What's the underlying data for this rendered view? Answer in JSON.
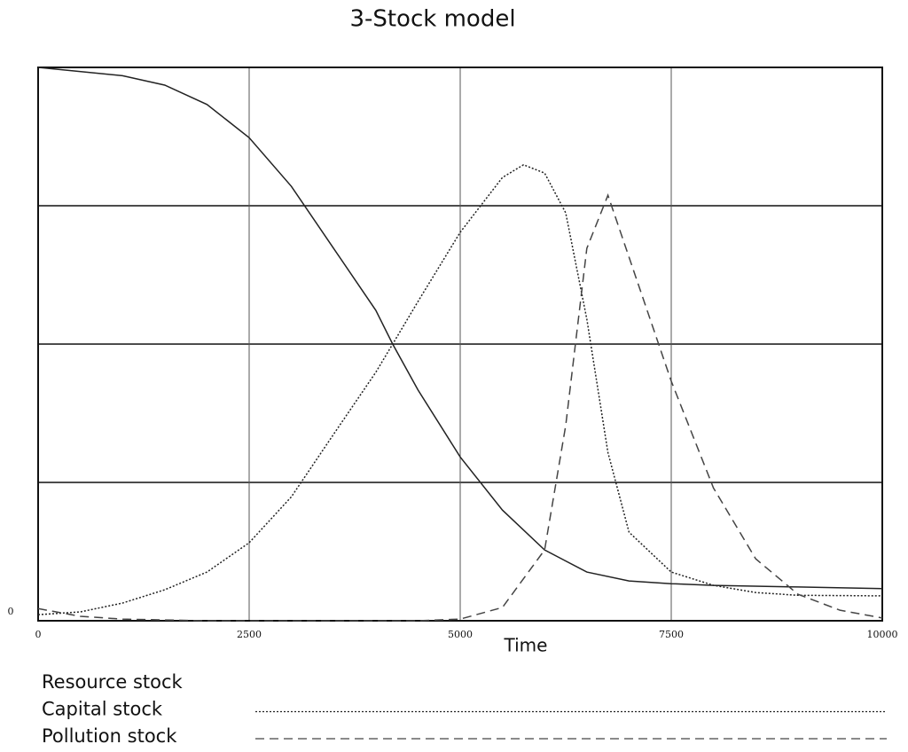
{
  "chart_data": {
    "type": "line",
    "title": "3-Stock model",
    "x_label": "Time",
    "xlim": [
      0,
      10000
    ],
    "xticks": [
      0,
      2500,
      5000,
      7500,
      10000
    ],
    "ylim": [
      0,
      1
    ],
    "yticks": [
      0
    ],
    "ygrid": [
      0.25,
      0.5,
      0.75
    ],
    "grid": true,
    "series": [
      {
        "name": "Resource stock",
        "color": "#222222",
        "dash": "solid",
        "x": [
          0,
          1000,
          1500,
          2000,
          2500,
          3000,
          3500,
          4000,
          4200,
          4500,
          5000,
          5500,
          6000,
          6500,
          7000,
          7500,
          8000,
          9000,
          10000
        ],
        "values": [
          1.0,
          0.985,
          0.968,
          0.933,
          0.873,
          0.785,
          0.673,
          0.561,
          0.5,
          0.417,
          0.296,
          0.2,
          0.128,
          0.088,
          0.072,
          0.067,
          0.064,
          0.061,
          0.058
        ]
      },
      {
        "name": "Capital stock",
        "color": "#222222",
        "dash": "dotted",
        "x": [
          0,
          500,
          1000,
          1500,
          2000,
          2500,
          3000,
          3500,
          4000,
          4200,
          4500,
          5000,
          5500,
          5750,
          6000,
          6250,
          6500,
          6750,
          7000,
          7500,
          8000,
          8500,
          9000,
          10000
        ],
        "values": [
          0.011,
          0.016,
          0.032,
          0.056,
          0.088,
          0.141,
          0.224,
          0.337,
          0.449,
          0.5,
          0.577,
          0.702,
          0.801,
          0.824,
          0.809,
          0.737,
          0.545,
          0.304,
          0.16,
          0.088,
          0.064,
          0.051,
          0.046,
          0.045
        ]
      },
      {
        "name": "Pollution stock",
        "color": "#444444",
        "dash": "dashed",
        "x": [
          0,
          500,
          1000,
          2000,
          4500,
          5000,
          5500,
          6000,
          6250,
          6500,
          6750,
          7000,
          7500,
          8000,
          8500,
          9000,
          9500,
          10000
        ],
        "values": [
          0.022,
          0.008,
          0.003,
          0,
          0,
          0.003,
          0.024,
          0.128,
          0.353,
          0.673,
          0.769,
          0.657,
          0.433,
          0.24,
          0.112,
          0.048,
          0.019,
          0.005
        ]
      }
    ]
  }
}
